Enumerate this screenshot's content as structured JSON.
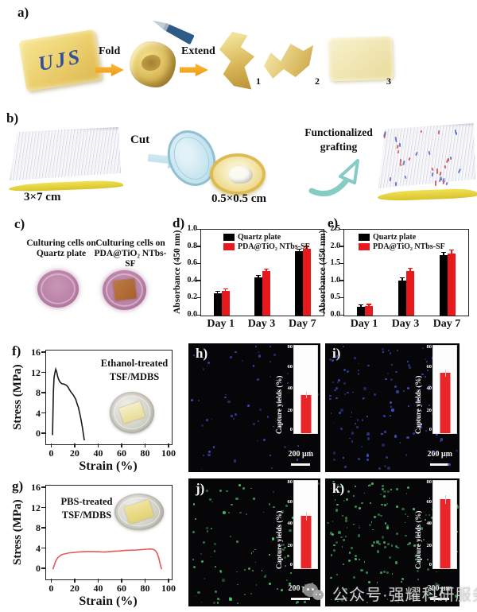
{
  "watermark": {
    "text": "公众号·强耀科研服务",
    "icon": "wechat-icon"
  },
  "panels": {
    "a": {
      "label": "a)",
      "film_text": "UJS",
      "fold_label": "Fold",
      "extend_label": "Extend",
      "stages": [
        "1",
        "2",
        "3"
      ]
    },
    "b": {
      "label": "b)",
      "mat_caption": "3×7 cm",
      "cut_label": "Cut",
      "dish_caption": "0.5×0.5 cm",
      "graft_line1": "Functionalized",
      "graft_line2": "grafting"
    },
    "c": {
      "label": "c)",
      "caption_left_line1": "Culturing cells on",
      "caption_left_line2": "Quartz plate",
      "caption_right_line1": "Culturing cells on",
      "caption_right_line2": "PDA@TiO₂ NTbs-SF"
    },
    "d": {
      "label": "d)"
    },
    "e": {
      "label": "e)"
    },
    "f": {
      "label": "f)",
      "annotation_line1": "Ethanol-treated",
      "annotation_line2": "TSF/MDBS"
    },
    "g": {
      "label": "g)",
      "annotation_line1": "PBS-treated",
      "annotation_line2": "TSF/MDBS"
    },
    "h": {
      "label": "h)",
      "inset_ylabel": "Capture yields (%)",
      "scalebar": "200 μm"
    },
    "i": {
      "label": "i)",
      "inset_ylabel": "Capture yields (%)",
      "scalebar": "200 μm"
    },
    "j": {
      "label": "j)",
      "inset_ylabel": "Capture yields (%)",
      "scalebar": "200 μm"
    },
    "k": {
      "label": "k)",
      "inset_ylabel": "Capture yields (%)",
      "scalebar": "200 μm"
    }
  },
  "b_graft_dots": {
    "count": 34,
    "colors": [
      "#d24a4a",
      "#5468cc"
    ],
    "seed": 7
  },
  "chart_data": [
    {
      "id": "d",
      "type": "bar",
      "categories": [
        "Day 1",
        "Day 3",
        "Day 7"
      ],
      "series": [
        {
          "name": "Quartz plate",
          "color": "#000000",
          "values": [
            0.26,
            0.44,
            0.75
          ],
          "errors": [
            0.015,
            0.02,
            0.02
          ]
        },
        {
          "name": "PDA@TiO₂ NTbs-SF",
          "color": "#e8191d",
          "values": [
            0.29,
            0.52,
            0.78
          ],
          "errors": [
            0.015,
            0.02,
            0.02
          ]
        }
      ],
      "ylabel": "Absorbance (450 nm)",
      "ylim": [
        0,
        1.0
      ],
      "yticks": [
        "0.0",
        "0.2",
        "0.4",
        "0.6",
        "0.8",
        "1.0"
      ],
      "legend_position": "top-left"
    },
    {
      "id": "e",
      "type": "bar",
      "categories": [
        "Day 1",
        "Day 3",
        "Day 7"
      ],
      "series": [
        {
          "name": "Quartz plate",
          "color": "#000000",
          "values": [
            0.25,
            1.02,
            1.75
          ],
          "errors": [
            0.04,
            0.06,
            0.08
          ]
        },
        {
          "name": "PDA@TiO₂ NTbs-SF",
          "color": "#e8191d",
          "values": [
            0.27,
            1.3,
            1.81
          ],
          "errors": [
            0.04,
            0.06,
            0.08
          ]
        }
      ],
      "ylabel": "Absorbance (450 nm)",
      "ylim": [
        0,
        2.5
      ],
      "yticks": [
        "0.0",
        "0.5",
        "1.0",
        "1.5",
        "2.0",
        "2.5"
      ],
      "legend_position": "top-left"
    },
    {
      "id": "f",
      "type": "line",
      "xlabel": "Strain (%)",
      "ylabel": "Stress (MPa)",
      "xlim": [
        -5,
        102
      ],
      "ylim": [
        -2,
        16.5
      ],
      "xticks": [
        0,
        20,
        40,
        60,
        80,
        100
      ],
      "yticks": [
        0,
        4,
        8,
        12,
        16
      ],
      "series": [
        {
          "name": "Ethanol-treated TSF/MDBS",
          "color": "#1a1a1a",
          "points": [
            [
              0.5,
              -0.2
            ],
            [
              0.8,
              4.0
            ],
            [
              1.2,
              8.5
            ],
            [
              1.8,
              11.2
            ],
            [
              2.5,
              12.1
            ],
            [
              3.2,
              12.8
            ],
            [
              4.0,
              12.3
            ],
            [
              4.8,
              11.4
            ],
            [
              5.5,
              10.9
            ],
            [
              6.5,
              10.4
            ],
            [
              7.5,
              10.1
            ],
            [
              8.5,
              9.95
            ],
            [
              9.5,
              9.9
            ],
            [
              10.5,
              9.85
            ],
            [
              11.5,
              9.75
            ],
            [
              12.5,
              9.6
            ],
            [
              13.2,
              9.4
            ],
            [
              14.0,
              9.15
            ],
            [
              14.8,
              8.8
            ],
            [
              15.5,
              8.55
            ],
            [
              16.2,
              8.3
            ],
            [
              17.0,
              8.05
            ],
            [
              17.8,
              7.85
            ],
            [
              18.5,
              7.6
            ],
            [
              19.2,
              7.3
            ],
            [
              20.0,
              7.0
            ],
            [
              20.6,
              6.6
            ],
            [
              21.2,
              6.15
            ],
            [
              21.8,
              5.7
            ],
            [
              22.4,
              5.35
            ],
            [
              23.0,
              4.8
            ],
            [
              23.6,
              4.2
            ],
            [
              24.2,
              3.5
            ],
            [
              24.8,
              2.8
            ],
            [
              25.4,
              2.0
            ],
            [
              26.0,
              1.2
            ],
            [
              26.5,
              0.4
            ],
            [
              27.0,
              -0.4
            ],
            [
              27.4,
              -1.0
            ],
            [
              27.8,
              -1.2
            ]
          ]
        }
      ]
    },
    {
      "id": "g",
      "type": "line",
      "xlabel": "Strain (%)",
      "ylabel": "Stress (MPa)",
      "xlim": [
        -5,
        102
      ],
      "ylim": [
        -2,
        16.5
      ],
      "xticks": [
        0,
        20,
        40,
        60,
        80,
        100
      ],
      "yticks": [
        0,
        4,
        8,
        12,
        16
      ],
      "series": [
        {
          "name": "PBS-treated TSF/MDBS",
          "color": "#e25a5a",
          "points": [
            [
              0.8,
              0.0
            ],
            [
              1.5,
              0.5
            ],
            [
              2.5,
              1.2
            ],
            [
              3.5,
              1.8
            ],
            [
              5,
              2.3
            ],
            [
              6.5,
              2.6
            ],
            [
              8,
              2.85
            ],
            [
              10,
              3.0
            ],
            [
              12,
              3.1
            ],
            [
              15,
              3.25
            ],
            [
              18,
              3.3
            ],
            [
              22,
              3.4
            ],
            [
              26,
              3.45
            ],
            [
              30,
              3.5
            ],
            [
              35,
              3.5
            ],
            [
              40,
              3.45
            ],
            [
              44,
              3.4
            ],
            [
              48,
              3.45
            ],
            [
              52,
              3.55
            ],
            [
              57,
              3.6
            ],
            [
              62,
              3.7
            ],
            [
              67,
              3.75
            ],
            [
              72,
              3.8
            ],
            [
              77,
              3.9
            ],
            [
              81,
              3.95
            ],
            [
              84,
              4.0
            ],
            [
              86,
              3.95
            ],
            [
              88,
              3.7
            ],
            [
              89.5,
              3.2
            ],
            [
              91,
              2.2
            ],
            [
              92,
              1.2
            ],
            [
              93,
              0.3
            ],
            [
              93.5,
              0.0
            ]
          ]
        }
      ]
    },
    {
      "id": "h",
      "type": "bar",
      "ylabel": "Capture yields (%)",
      "values": [
        35
      ],
      "errors": [
        3
      ],
      "ylim": [
        0,
        80
      ],
      "yticks": [
        0,
        20,
        40,
        60,
        80
      ],
      "bar_color": "#e8262a",
      "dots": {
        "count": 60,
        "color": "#4253d6",
        "seed": 11
      }
    },
    {
      "id": "i",
      "type": "bar",
      "ylabel": "Capture yields (%)",
      "values": [
        55
      ],
      "errors": [
        3
      ],
      "ylim": [
        0,
        80
      ],
      "yticks": [
        0,
        20,
        40,
        60,
        80
      ],
      "bar_color": "#e8262a",
      "dots": {
        "count": 150,
        "color": "#4253d6",
        "seed": 22
      }
    },
    {
      "id": "j",
      "type": "bar",
      "ylabel": "Capture yields (%)",
      "values": [
        48
      ],
      "errors": [
        4
      ],
      "ylim": [
        0,
        80
      ],
      "yticks": [
        0,
        20,
        40,
        60,
        80
      ],
      "bar_color": "#e8262a",
      "dots": {
        "count": 120,
        "color": "#4fc96e",
        "seed": 33
      }
    },
    {
      "id": "k",
      "type": "bar",
      "ylabel": "Capture yields (%)",
      "values": [
        63
      ],
      "errors": [
        4
      ],
      "ylim": [
        0,
        80
      ],
      "yticks": [
        0,
        20,
        40,
        60,
        80
      ],
      "bar_color": "#e8262a",
      "dots": {
        "count": 185,
        "color": "#4fc96e",
        "seed": 44
      }
    }
  ]
}
